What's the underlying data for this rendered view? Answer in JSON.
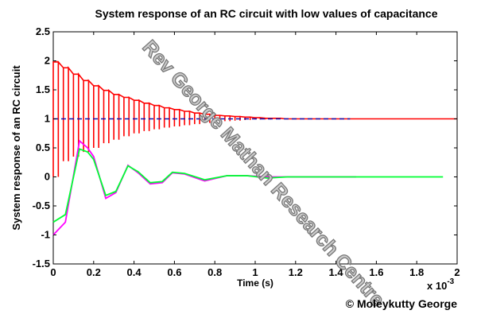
{
  "chart_data": {
    "type": "line",
    "title": "System response of an RC circuit with low values of capacitance",
    "xlabel": "Time (s)",
    "ylabel": "System response of an RC circuit",
    "x_multiplier_label": "x 10",
    "x_multiplier_exponent": "-3",
    "xlim": [
      0,
      2
    ],
    "ylim": [
      -1.5,
      2.5
    ],
    "x_ticks": [
      "0",
      "0.2",
      "0.4",
      "0.6",
      "0.8",
      "1",
      "1.2",
      "1.4",
      "1.6",
      "1.8",
      "2"
    ],
    "y_ticks": [
      "-1.5",
      "-1",
      "-0.5",
      "0",
      "0.5",
      "1",
      "1.5",
      "2",
      "2.5"
    ],
    "grid": false,
    "series": [
      {
        "color": "#ff0000",
        "style": "square-wave",
        "x": [
          0,
          0.05,
          0.1,
          0.15,
          0.2,
          0.25,
          0.3,
          0.35,
          0.4,
          0.45,
          0.5,
          0.55,
          0.6,
          0.65,
          0.7,
          0.75,
          0.8,
          0.85,
          0.9,
          0.95,
          1.0,
          1.05,
          1.1,
          1.15,
          1.2,
          1.25,
          1.3,
          1.35,
          1.4,
          1.45,
          1.5,
          1.6,
          1.7,
          1.8,
          1.9,
          2.0
        ],
        "upper": [
          1.98,
          1.88,
          1.77,
          1.66,
          1.57,
          1.49,
          1.42,
          1.37,
          1.32,
          1.27,
          1.23,
          1.19,
          1.16,
          1.13,
          1.1,
          1.08,
          1.06,
          1.05,
          1.04,
          1.03,
          1.02,
          1.01,
          1.01,
          1.0,
          1.0,
          1.0,
          1.0,
          1.0,
          1.0,
          1.0,
          1.0,
          1.0,
          1.0,
          1.0,
          1.0,
          1.0
        ],
        "lower": [
          0.0,
          0.27,
          0.35,
          0.43,
          0.5,
          0.58,
          0.64,
          0.7,
          0.75,
          0.79,
          0.82,
          0.85,
          0.87,
          0.89,
          0.91,
          0.93,
          0.95,
          0.96,
          0.97,
          0.98,
          0.99,
          0.99,
          1.0,
          1.0,
          1.0,
          1.0,
          1.0,
          1.0,
          1.0,
          1.0,
          1.0,
          1.0,
          1.0,
          1.0,
          1.0,
          1.0
        ]
      },
      {
        "color": "#1010b0",
        "style": "dashed",
        "x": [
          0,
          1.47
        ],
        "y": [
          1.0,
          1.0
        ]
      },
      {
        "color": "#ff00ff",
        "style": "line",
        "x": [
          0,
          0.06,
          0.13,
          0.17,
          0.2,
          0.26,
          0.31,
          0.37,
          0.42,
          0.48,
          0.54,
          0.59,
          0.65,
          0.75,
          0.86,
          0.96,
          1.06,
          1.16,
          1.26,
          1.36,
          1.46,
          1.5
        ],
        "y": [
          -1.0,
          -0.78,
          0.62,
          0.5,
          0.35,
          -0.37,
          -0.27,
          0.2,
          0.07,
          -0.12,
          -0.1,
          0.07,
          0.05,
          -0.07,
          0.02,
          0.02,
          0.0,
          0.0,
          0.0,
          0.0,
          0.0,
          0.0
        ]
      },
      {
        "color": "#00ff33",
        "style": "line",
        "x": [
          0,
          0.06,
          0.13,
          0.17,
          0.2,
          0.26,
          0.31,
          0.37,
          0.42,
          0.48,
          0.54,
          0.59,
          0.65,
          0.75,
          0.86,
          0.96,
          1.06,
          1.16,
          1.26,
          1.36,
          1.46,
          1.56,
          1.66,
          1.76,
          1.86,
          1.93
        ],
        "y": [
          -0.78,
          -0.65,
          0.48,
          0.43,
          0.3,
          -0.32,
          -0.25,
          0.19,
          0.09,
          -0.1,
          -0.08,
          0.08,
          0.06,
          -0.05,
          0.02,
          0.02,
          -0.02,
          0.0,
          0.0,
          0.0,
          0.0,
          0.0,
          0.0,
          0.0,
          0.0,
          0.0
        ]
      }
    ]
  },
  "watermark": "Rev George Mathan Research Centre",
  "copyright": "© Moleykutty George"
}
